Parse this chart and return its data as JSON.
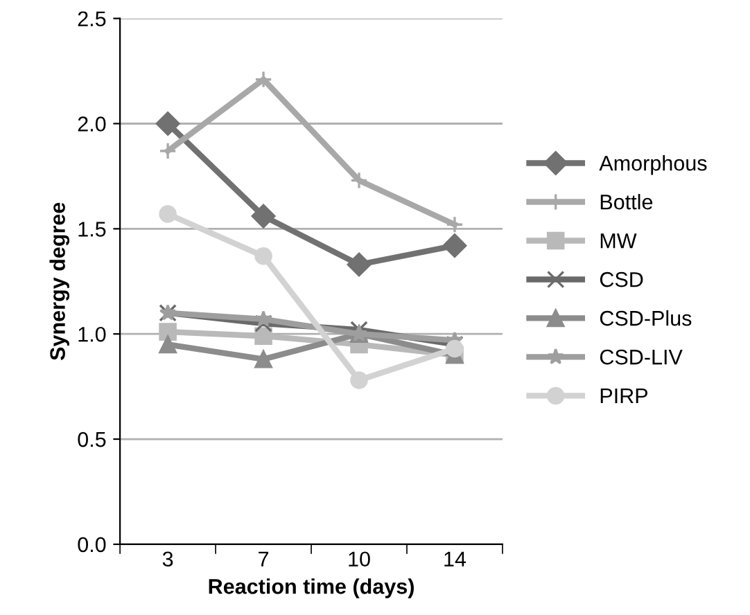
{
  "chart_data": {
    "type": "line",
    "xlabel": "Reaction time (days)",
    "ylabel": "Synergy degree",
    "categories": [
      "3",
      "7",
      "10",
      "14"
    ],
    "series": [
      {
        "name": "Amorphous",
        "color": "#717171",
        "marker": "diamond",
        "values": [
          2.0,
          1.56,
          1.33,
          1.42
        ]
      },
      {
        "name": "Bottle",
        "color": "#a8a8a8",
        "marker": "plus",
        "values": [
          1.87,
          2.21,
          1.73,
          1.52
        ]
      },
      {
        "name": "MW",
        "color": "#b9b9b9",
        "marker": "square",
        "values": [
          1.01,
          0.99,
          0.95,
          0.9
        ]
      },
      {
        "name": "CSD",
        "color": "#6a6a6a",
        "marker": "cross",
        "values": [
          1.1,
          1.05,
          1.02,
          0.95
        ]
      },
      {
        "name": "CSD-Plus",
        "color": "#8c8c8c",
        "marker": "triangle",
        "values": [
          0.95,
          0.88,
          1.0,
          0.9
        ]
      },
      {
        "name": "CSD-LIV",
        "color": "#9e9e9e",
        "marker": "star",
        "values": [
          1.1,
          1.07,
          1.0,
          0.97
        ]
      },
      {
        "name": "PIRP",
        "color": "#d2d2d2",
        "marker": "circle",
        "values": [
          1.57,
          1.37,
          0.78,
          0.93
        ]
      }
    ],
    "ylim": [
      0,
      2.5
    ],
    "yticks": [
      {
        "value": 0,
        "label": "0.0"
      },
      {
        "value": 0.5,
        "label": "0.5"
      },
      {
        "value": 1.0,
        "label": "1.0"
      },
      {
        "value": 1.5,
        "label": "1.5"
      },
      {
        "value": 2.0,
        "label": "2.0"
      },
      {
        "value": 2.5,
        "label": "2.5"
      }
    ],
    "grid": "y",
    "legend": "right",
    "line_style": "solid"
  }
}
